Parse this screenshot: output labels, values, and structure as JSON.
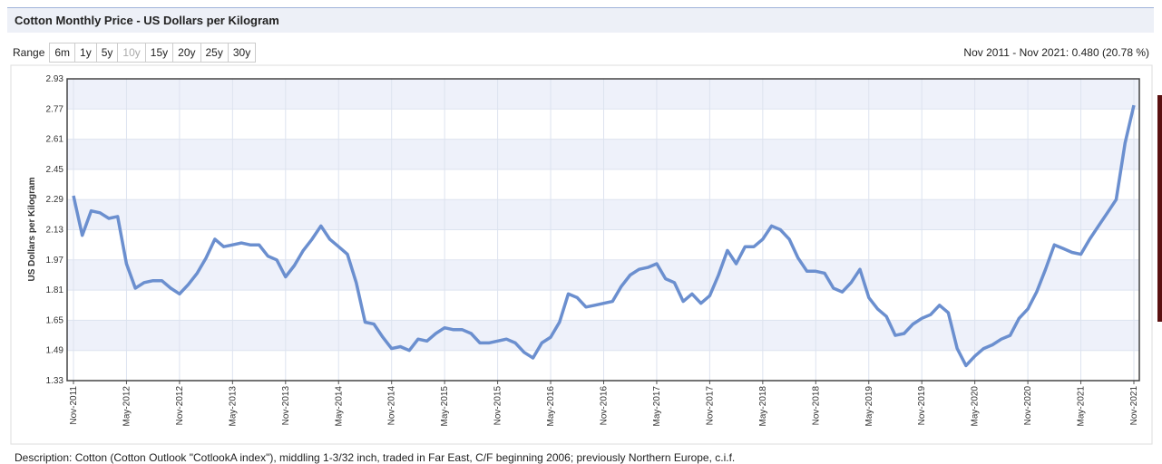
{
  "header": {
    "title": "Cotton Monthly Price - US Dollars per Kilogram"
  },
  "controls": {
    "range_label": "Range",
    "range_options": [
      "6m",
      "1y",
      "5y",
      "10y",
      "15y",
      "20y",
      "25y",
      "30y"
    ],
    "selected": "10y",
    "summary": "Nov 2011 - Nov 2021: 0.480 (20.78 %)"
  },
  "description": "Description: Cotton (Cotton Outlook \"CotlookA index\"), middling 1-3/32 inch, traded in Far East, C/F beginning 2006; previously Northern Europe, c.i.f.",
  "chart_data": {
    "type": "line",
    "y_label": "US Dollars per Kilogram",
    "color": "#6b8fcf",
    "grid": true,
    "ylim": [
      1.33,
      2.93
    ],
    "yticks": [
      1.33,
      1.49,
      1.65,
      1.81,
      1.97,
      2.13,
      2.29,
      2.45,
      2.61,
      2.77,
      2.93
    ],
    "categories": [
      "Nov-2011",
      null,
      null,
      null,
      null,
      null,
      "May-2012",
      null,
      null,
      null,
      null,
      null,
      "Nov-2012",
      null,
      null,
      null,
      null,
      null,
      "May-2013",
      null,
      null,
      null,
      null,
      null,
      "Nov-2013",
      null,
      null,
      null,
      null,
      null,
      "May-2014",
      null,
      null,
      null,
      null,
      null,
      "Nov-2014",
      null,
      null,
      null,
      null,
      null,
      "May-2015",
      null,
      null,
      null,
      null,
      null,
      "Nov-2015",
      null,
      null,
      null,
      null,
      null,
      "May-2016",
      null,
      null,
      null,
      null,
      null,
      "Nov-2016",
      null,
      null,
      null,
      null,
      null,
      "May-2017",
      null,
      null,
      null,
      null,
      null,
      "Nov-2017",
      null,
      null,
      null,
      null,
      null,
      "May-2018",
      null,
      null,
      null,
      null,
      null,
      "Nov-2018",
      null,
      null,
      null,
      null,
      null,
      "May-2019",
      null,
      null,
      null,
      null,
      null,
      "Nov-2019",
      null,
      null,
      null,
      null,
      null,
      "May-2020",
      null,
      null,
      null,
      null,
      null,
      "Nov-2020",
      null,
      null,
      null,
      null,
      null,
      "May-2021",
      null,
      null,
      null,
      null,
      null,
      "Nov-2021"
    ],
    "values": [
      2.31,
      2.1,
      2.23,
      2.22,
      2.19,
      2.2,
      1.95,
      1.82,
      1.85,
      1.86,
      1.86,
      1.82,
      1.79,
      1.84,
      1.9,
      1.98,
      2.08,
      2.04,
      2.05,
      2.06,
      2.05,
      2.05,
      1.99,
      1.97,
      1.88,
      1.94,
      2.02,
      2.08,
      2.15,
      2.08,
      2.04,
      2.0,
      1.85,
      1.64,
      1.63,
      1.56,
      1.5,
      1.51,
      1.49,
      1.55,
      1.54,
      1.58,
      1.61,
      1.6,
      1.6,
      1.58,
      1.53,
      1.53,
      1.54,
      1.55,
      1.53,
      1.48,
      1.45,
      1.53,
      1.56,
      1.64,
      1.79,
      1.77,
      1.72,
      1.73,
      1.74,
      1.75,
      1.83,
      1.89,
      1.92,
      1.93,
      1.95,
      1.87,
      1.85,
      1.75,
      1.79,
      1.74,
      1.78,
      1.89,
      2.02,
      1.95,
      2.04,
      2.04,
      2.08,
      2.15,
      2.13,
      2.08,
      1.98,
      1.91,
      1.91,
      1.9,
      1.82,
      1.8,
      1.85,
      1.92,
      1.77,
      1.71,
      1.67,
      1.57,
      1.58,
      1.63,
      1.66,
      1.68,
      1.73,
      1.69,
      1.5,
      1.41,
      1.46,
      1.5,
      1.52,
      1.55,
      1.57,
      1.66,
      1.71,
      1.8,
      1.92,
      2.05,
      2.03,
      2.01,
      2.0,
      2.08,
      2.15,
      2.22,
      2.29,
      2.59,
      2.79
    ]
  }
}
